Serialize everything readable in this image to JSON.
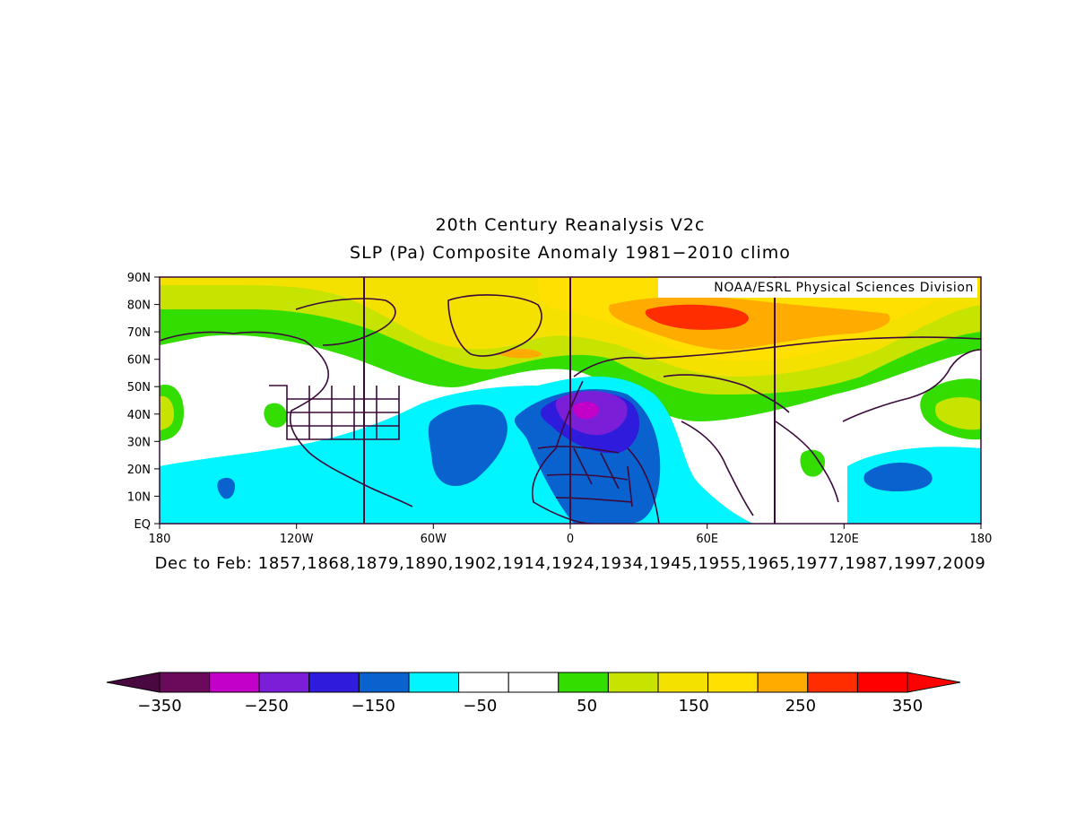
{
  "title_line1": "20th Century Reanalysis V2c",
  "title_line2": "SLP (Pa) Composite Anomaly 1981−2010 climo",
  "credit": "NOAA/ESRL Physical Sciences Division",
  "composite_years": "Dec to Feb: 1857,1868,1879,1890,1902,1914,1924,1934,1945,1955,1965,1977,1987,1997,2009",
  "lat_ticks": [
    "90N",
    "80N",
    "70N",
    "60N",
    "50N",
    "40N",
    "30N",
    "20N",
    "10N",
    "EQ"
  ],
  "lon_ticks": [
    "180",
    "120W",
    "60W",
    "0",
    "60E",
    "120E",
    "180"
  ],
  "colorbar": {
    "colors": [
      "#6b0a5a",
      "#c300c8",
      "#7a1ed8",
      "#2e1bdb",
      "#0a62cf",
      "#00f5ff",
      "#ffffff",
      "#ffffff",
      "#33dd00",
      "#c6e400",
      "#f5e100",
      "#ffe000",
      "#ffab00",
      "#ff2d00",
      "#ff0000"
    ],
    "under_color": "#4a0840",
    "over_color": "#ff0000",
    "labels": [
      "−350",
      "−250",
      "−150",
      "−50",
      "50",
      "150",
      "250",
      "350"
    ]
  },
  "map_colors": {
    "ocean_neutral": "#ffffff",
    "neg_50": "#00f5ff",
    "neg_100": "#0a62cf",
    "neg_150": "#2e1bdb",
    "neg_200": "#7a1ed8",
    "neg_250": "#c300c8",
    "pos_50": "#33dd00",
    "pos_100": "#c6e400",
    "pos_150": "#f5e100",
    "pos_200": "#ffe000",
    "pos_250": "#ffab00",
    "pos_300": "#ff2d00",
    "coast": "#3b0a3b"
  }
}
